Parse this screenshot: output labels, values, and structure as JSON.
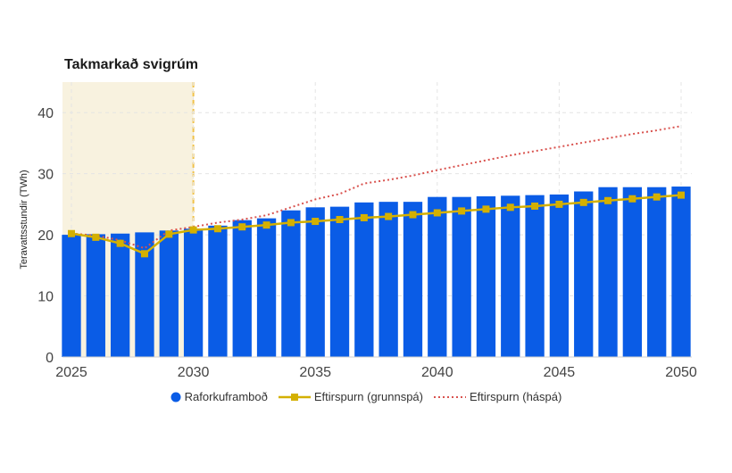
{
  "chart_data": {
    "type": "bar",
    "title": "Takmarkað svigrúm",
    "ylabel": "Teravattsstundir (TWh)",
    "xlabel": "",
    "ylim": [
      0,
      45
    ],
    "xlim": [
      2025,
      2050
    ],
    "y_ticks": [
      0,
      10,
      20,
      30,
      40
    ],
    "x_ticks": [
      2025,
      2030,
      2035,
      2040,
      2045,
      2050
    ],
    "x": [
      2025,
      2026,
      2027,
      2028,
      2029,
      2030,
      2031,
      2032,
      2033,
      2034,
      2035,
      2036,
      2037,
      2038,
      2039,
      2040,
      2041,
      2042,
      2043,
      2044,
      2045,
      2046,
      2047,
      2048,
      2049,
      2050
    ],
    "highlight_range": [
      2025,
      2030
    ],
    "grid": true,
    "legend_position": "bottom",
    "series": [
      {
        "name": "Raforkuframboð",
        "kind": "bar",
        "color": "#0a5ce6",
        "values": [
          20.0,
          20.1,
          20.2,
          20.4,
          20.7,
          21.0,
          21.5,
          22.4,
          22.7,
          24.0,
          24.5,
          24.6,
          25.3,
          25.4,
          25.4,
          26.2,
          26.2,
          26.3,
          26.4,
          26.5,
          26.6,
          27.1,
          27.8,
          27.8,
          27.8,
          27.9
        ]
      },
      {
        "name": "Eftirspurn (grunnspá)",
        "kind": "line-marker",
        "color": "#d4b000",
        "values": [
          20.2,
          19.6,
          18.6,
          16.9,
          20.1,
          20.8,
          21.0,
          21.3,
          21.6,
          22.0,
          22.2,
          22.5,
          22.8,
          23.0,
          23.3,
          23.6,
          23.9,
          24.2,
          24.5,
          24.7,
          25.0,
          25.3,
          25.6,
          25.9,
          26.2,
          26.5
        ]
      },
      {
        "name": "Eftirspurn (háspá)",
        "kind": "dotted-line",
        "color": "#d9534f",
        "values": [
          20.2,
          19.9,
          19.1,
          17.8,
          20.7,
          21.3,
          22.0,
          22.5,
          23.2,
          24.5,
          25.8,
          26.7,
          28.4,
          29.0,
          29.7,
          30.6,
          31.4,
          32.2,
          33.0,
          33.7,
          34.4,
          35.1,
          35.8,
          36.5,
          37.1,
          37.8
        ]
      }
    ]
  }
}
